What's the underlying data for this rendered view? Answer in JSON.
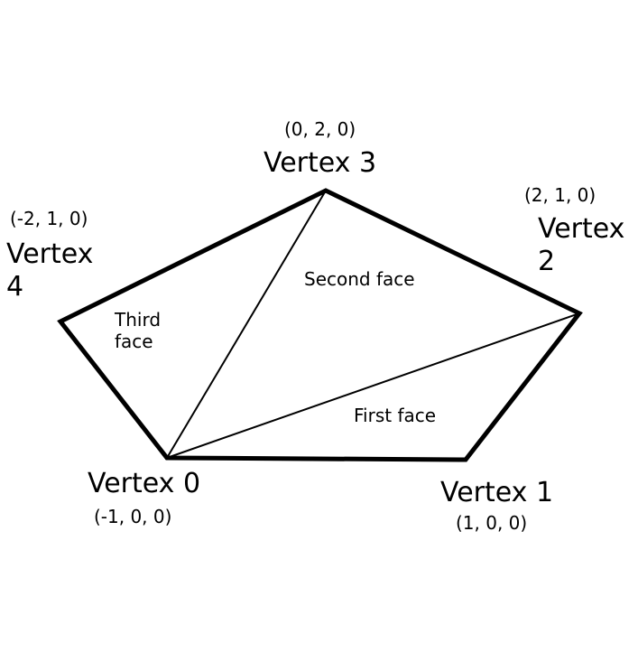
{
  "colors": {
    "background": "#ffffff",
    "stroke": "#000000"
  },
  "vertices": [
    {
      "id": "v0",
      "name": "Vertex 0",
      "coords": "(-1, 0, 0)"
    },
    {
      "id": "v1",
      "name": "Vertex 1",
      "coords": "(1, 0, 0)"
    },
    {
      "id": "v2",
      "name": "Vertex 2",
      "coords": "(2, 1, 0)"
    },
    {
      "id": "v3",
      "name": "Vertex 3",
      "coords": "(0, 2, 0)"
    },
    {
      "id": "v4",
      "name": "Vertex 4",
      "coords": "(-2, 1, 0)"
    }
  ],
  "faces": [
    {
      "label": "First face",
      "vertices": [
        "v0",
        "v1",
        "v2"
      ]
    },
    {
      "label": "Second face",
      "vertices": [
        "v0",
        "v2",
        "v3"
      ]
    },
    {
      "label": "Third face",
      "vertices": [
        "v0",
        "v3",
        "v4"
      ]
    }
  ]
}
